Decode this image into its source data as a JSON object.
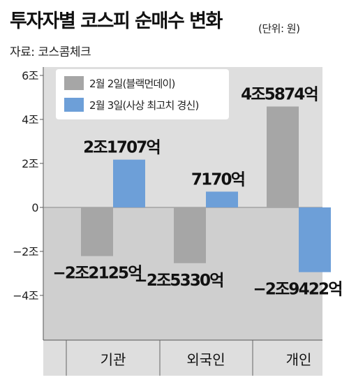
{
  "header": {
    "title": "투자자별 코스피 순매수 변화",
    "unit": "(단위: 원)",
    "source": "자료: 코스콤체크"
  },
  "chart_data": {
    "type": "bar",
    "categories": [
      "기관",
      "외국인",
      "개인"
    ],
    "series": [
      {
        "name": "2월 2일(블랙먼데이)",
        "color": "#a6a6a6",
        "values": [
          -2.2125,
          -2.533,
          4.5874
        ],
        "labels": [
          "−2조2125억",
          "−2조5330억",
          "4조5874억"
        ]
      },
      {
        "name": "2월 3일(사상 최고치 경신)",
        "color": "#6d9fd8",
        "values": [
          2.1707,
          0.717,
          -2.9422
        ],
        "labels": [
          "2조1707억",
          "7170억",
          "−2조9422억"
        ]
      }
    ],
    "ylim": [
      -6,
      6
    ],
    "yticks": [
      6,
      4,
      2,
      0,
      -2,
      -4
    ],
    "ytick_labels": [
      "6조",
      "4조",
      "2조",
      "0",
      "−2조",
      "−4조"
    ],
    "xlabel": "",
    "ylabel": "",
    "grid": false,
    "legend_position": "top-left"
  },
  "colors": {
    "plot_background": "#dedede",
    "negative_region": "#cfcfcf",
    "axis": "#555555"
  }
}
